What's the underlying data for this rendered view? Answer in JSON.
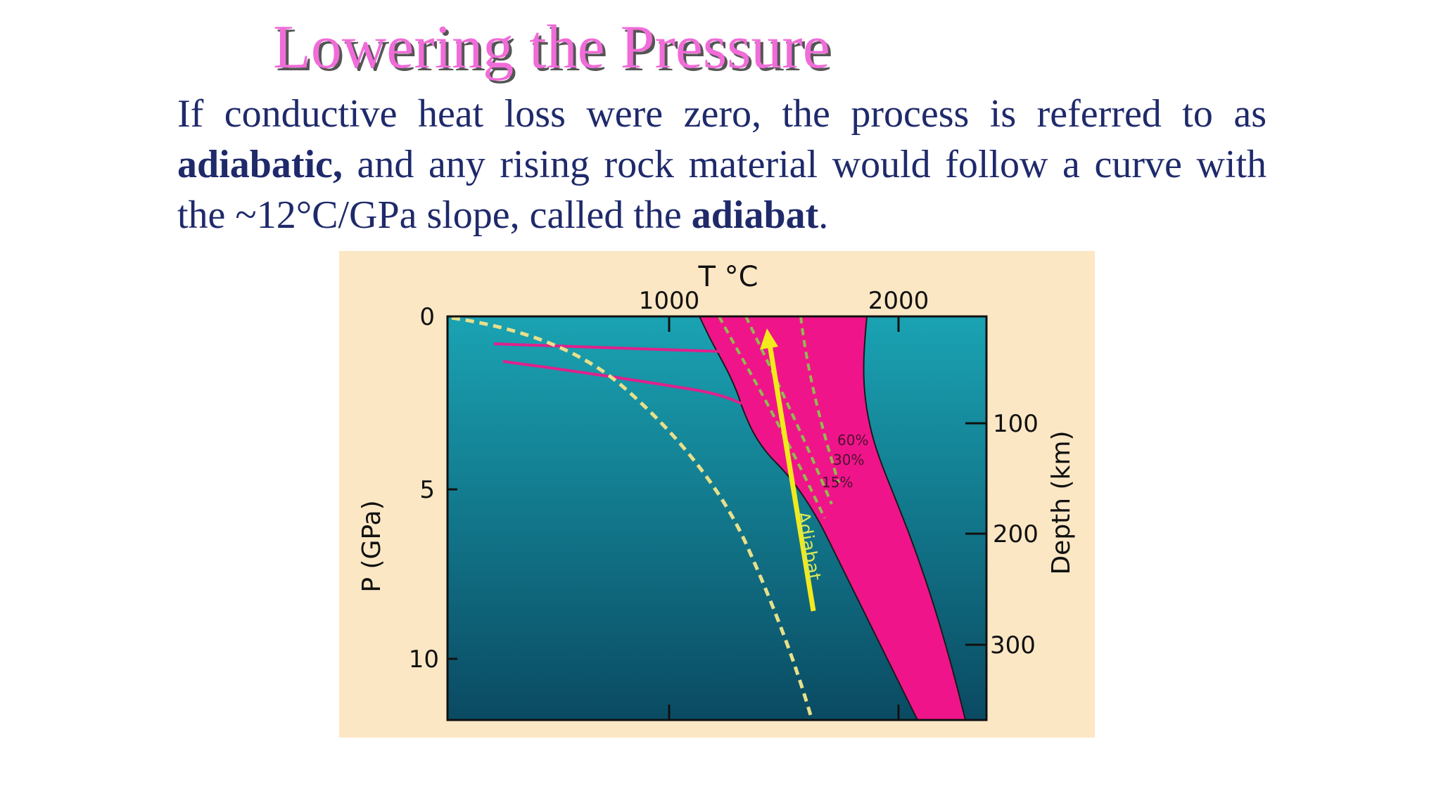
{
  "slide": {
    "title": "Lowering the Pressure",
    "paragraph": {
      "p1": "If conductive heat loss were zero, the process is referred to as ",
      "b1": "adiabatic,",
      "p2": " and any rising rock material would follow a curve with the ~12°C/GPa slope, called the ",
      "b2": "adiabat",
      "p3": "."
    }
  },
  "figure": {
    "colors": {
      "panel_bg": "#fbe7c4",
      "plot_top": "#1aa3b3",
      "plot_bottom": "#0a4a62",
      "melt_region": "#f0148a",
      "geotherm_dashed": "#e8e08a",
      "melt_isopleths": "#8fbc4f",
      "adiabat_arrow": "#f2ea1c",
      "adiabat_label": "#d7e85a",
      "pink_lines": "#e0208c"
    },
    "top_axis": {
      "title": "T °C",
      "ticks": [
        "1000",
        "2000"
      ]
    },
    "left_axis": {
      "title": "P (GPa)",
      "ticks": [
        "0",
        "5",
        "10"
      ]
    },
    "right_axis": {
      "title": "Depth (km)",
      "ticks": [
        "100",
        "200",
        "300"
      ]
    },
    "melt_labels": [
      "60%",
      "30%",
      "15%"
    ],
    "arrow_label": "Adiabat"
  }
}
